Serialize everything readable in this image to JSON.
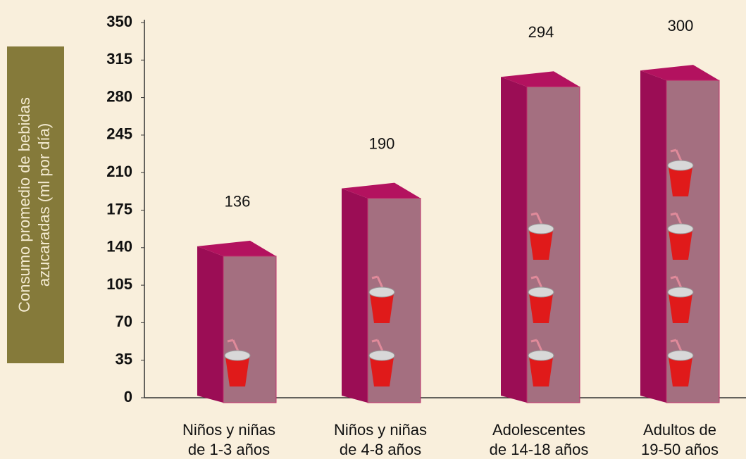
{
  "chart_data": {
    "type": "bar3d",
    "ylabel": [
      "Consumo promedio de bebidas",
      "azucaradas (ml por día)"
    ],
    "categories": [
      [
        "Niños y niñas",
        "de 1-3 años"
      ],
      [
        "Niños y niñas",
        "de 4-8 años"
      ],
      [
        "Adolescentes",
        "de 14-18 años"
      ],
      [
        "Adultos de",
        "19-50 años"
      ]
    ],
    "values": [
      136,
      190,
      294,
      300
    ],
    "color": "#a46f80",
    "ylim": [
      0,
      350
    ],
    "yticks": [
      0,
      35,
      70,
      105,
      140,
      175,
      210,
      245,
      280,
      315,
      350
    ]
  }
}
